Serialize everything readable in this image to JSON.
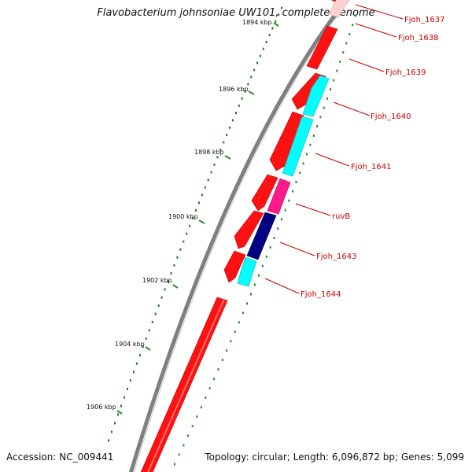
{
  "title": "Flavobacterium johnsoniae UW101, complete genome",
  "accession": "Accession: NC_009441",
  "topology_info": "Topology: circular; Length: 6,096,872 bp; Genes: 5,099",
  "scale_labels": [
    "1894 kbp",
    "1896 kbp",
    "1898 kbp",
    "1900 kbp",
    "1902 kbp",
    "1904 kbp",
    "1906 kbp"
  ],
  "gene_labels": [
    "Fjoh_1637",
    "Fjoh_1638",
    "Fjoh_1639",
    "Fjoh_1640",
    "Fjoh_1641",
    "ruvB",
    "Fjoh_1643",
    "Fjoh_1644"
  ],
  "colors": {
    "forward_gene": "#ff0000",
    "reverse_gene": "#00ffff",
    "ruvB": "#ff1a8c",
    "Fjoh_1643": "#000080",
    "backbone": "#808080",
    "dots": "#006400",
    "label_line": "#cc0000"
  }
}
